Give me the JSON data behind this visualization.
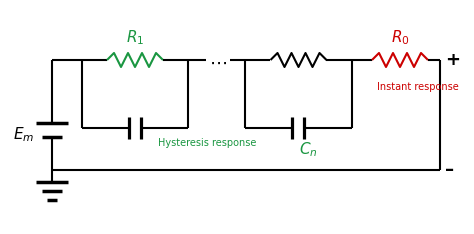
{
  "bg_color": "#ffffff",
  "line_color": "#000000",
  "green_color": "#1a9641",
  "red_color": "#cc0000",
  "label_Em": "$E_m$",
  "label_R1": "$R_1$",
  "label_R0": "$R_0$",
  "label_Cn": "$C_n$",
  "label_hysteresis": "Hysteresis response",
  "label_instant": "Instant response",
  "label_plus": "+",
  "label_minus": "–",
  "figwidth": 4.74,
  "figheight": 2.34,
  "dpi": 100
}
